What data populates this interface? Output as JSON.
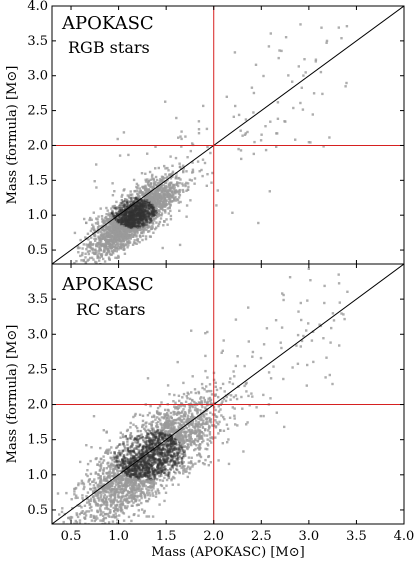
{
  "chart_data": [
    {
      "type": "scatter",
      "panel": "top",
      "title": "APOKASC",
      "subtitle": "RGB stars",
      "xlabel": "",
      "ylabel": "Mass (formula) [M⊙]",
      "xlim": [
        0.3,
        4.0
      ],
      "ylim": [
        0.3,
        4.0
      ],
      "xticks": [
        0.5,
        1.0,
        1.5,
        2.0,
        2.5,
        3.0,
        3.5,
        4.0
      ],
      "xtick_labels": [],
      "yticks": [
        0.5,
        1.0,
        1.5,
        2.0,
        2.5,
        3.0,
        3.5,
        4.0
      ],
      "ytick_labels": [
        "0.5",
        "1.0",
        "1.5",
        "2.0",
        "2.5",
        "3.0",
        "3.5",
        "4.0"
      ],
      "reference_lines": {
        "diagonal": "y = x",
        "vertical_x": 2.0,
        "horizontal_y": 2.0
      },
      "point_cloud": {
        "center": [
          1.15,
          1.05
        ],
        "spread": [
          0.22,
          0.2
        ],
        "count": 2600
      },
      "colors": {
        "points": "#9a9a9a",
        "dense_points": "#333333",
        "reference": "#d62020",
        "diagonal": "#000000"
      }
    },
    {
      "type": "scatter",
      "panel": "bottom",
      "title": "APOKASC",
      "subtitle": "RC stars",
      "xlabel": "Mass (APOKASC) [M⊙]",
      "ylabel": "Mass (formula) [M⊙]",
      "xlim": [
        0.3,
        4.0
      ],
      "ylim": [
        0.3,
        4.0
      ],
      "xticks": [
        0.5,
        1.0,
        1.5,
        2.0,
        2.5,
        3.0,
        3.5,
        4.0
      ],
      "xtick_labels": [
        "0.5",
        "1.0",
        "1.5",
        "2.0",
        "2.5",
        "3.0",
        "3.5",
        "4.0"
      ],
      "yticks": [
        0.5,
        1.0,
        1.5,
        2.0,
        2.5,
        3.0,
        3.5
      ],
      "ytick_labels": [
        "0.5",
        "1.0",
        "1.5",
        "2.0",
        "2.5",
        "3.0",
        "3.5"
      ],
      "reference_lines": {
        "diagonal": "y = x",
        "vertical_x": 2.0,
        "horizontal_y": 2.0
      },
      "point_cloud": {
        "center": [
          1.3,
          1.3
        ],
        "spread": [
          0.35,
          0.33
        ],
        "count": 3000
      },
      "colors": {
        "points": "#9a9a9a",
        "dense_points": "#333333",
        "reference": "#d62020",
        "diagonal": "#000000"
      }
    }
  ]
}
